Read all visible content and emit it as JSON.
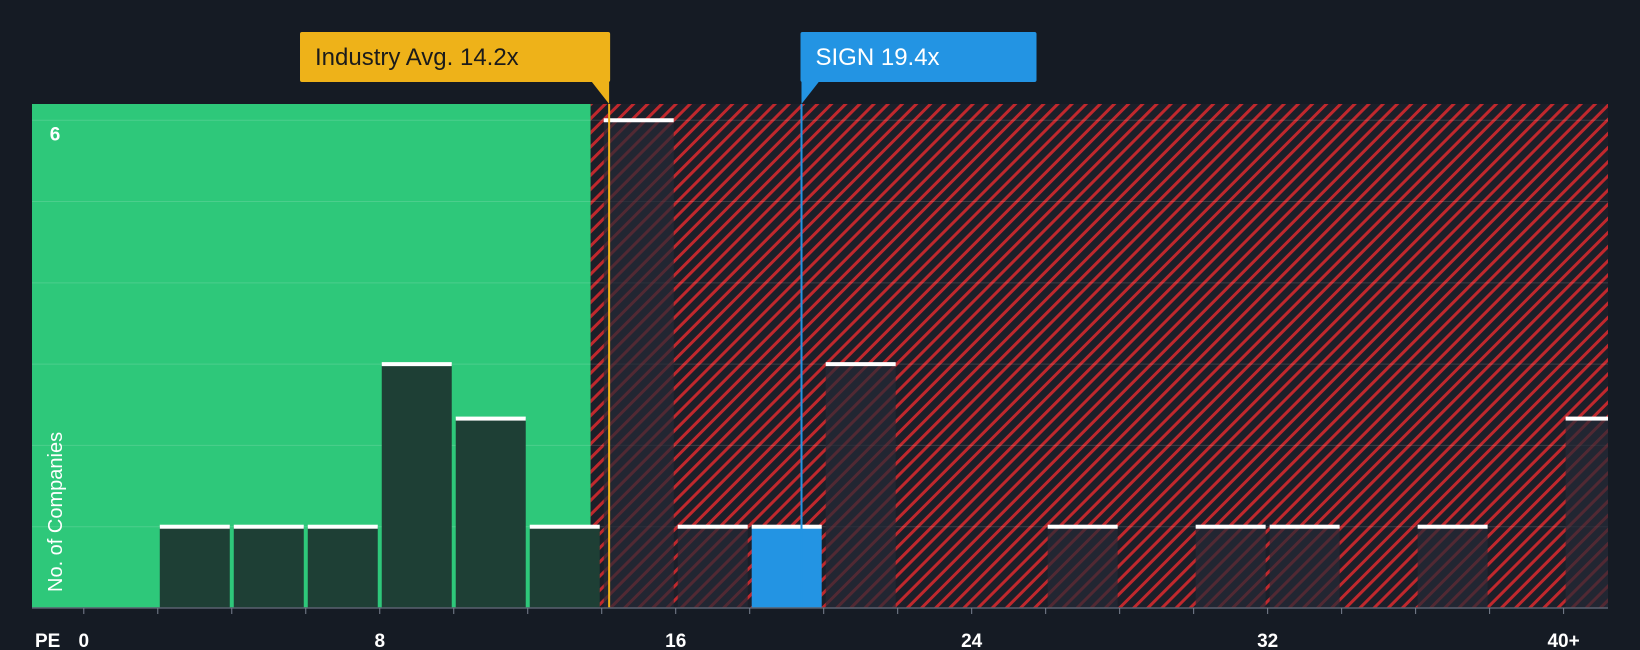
{
  "colors": {
    "background": "#151b24",
    "fair_zone": "#2ec87a",
    "over_zone": "#c0282d",
    "bar_dark": "#1e3f35",
    "bar_over": "#262a36",
    "highlight_bar": "#2394e3",
    "industry": "#eeb219",
    "sign": "#2394e3",
    "bar_cap": "#ffffff"
  },
  "chart_data": {
    "type": "bar",
    "title": "",
    "xlabel": "PE",
    "ylabel": "No. of Companies",
    "xlim": [
      -1.4,
      41.2
    ],
    "ylim": [
      0,
      6.2
    ],
    "x_ticks": [
      {
        "value": 0,
        "label": "0"
      },
      {
        "value": 8,
        "label": "8"
      },
      {
        "value": 16,
        "label": "16"
      },
      {
        "value": 24,
        "label": "24"
      },
      {
        "value": 32,
        "label": "32"
      },
      {
        "value": 40,
        "label": "40+"
      }
    ],
    "y_ticks": [
      {
        "value": 6,
        "label": "6"
      }
    ],
    "gridlines_y": [
      1,
      2,
      3,
      4,
      5,
      6
    ],
    "bin_width": 2,
    "bars": [
      {
        "x0": 2,
        "x1": 4,
        "value": 1
      },
      {
        "x0": 4,
        "x1": 6,
        "value": 1
      },
      {
        "x0": 6,
        "x1": 8,
        "value": 1
      },
      {
        "x0": 8,
        "x1": 10,
        "value": 3
      },
      {
        "x0": 10,
        "x1": 12,
        "value": 2.33
      },
      {
        "x0": 12,
        "x1": 14,
        "value": 1
      },
      {
        "x0": 14,
        "x1": 16,
        "value": 6
      },
      {
        "x0": 16,
        "x1": 18,
        "value": 1
      },
      {
        "x0": 18,
        "x1": 20,
        "value": 1,
        "highlight": true
      },
      {
        "x0": 20,
        "x1": 22,
        "value": 3
      },
      {
        "x0": 26,
        "x1": 28,
        "value": 1
      },
      {
        "x0": 30,
        "x1": 32,
        "value": 1
      },
      {
        "x0": 32,
        "x1": 34,
        "value": 1
      },
      {
        "x0": 36,
        "x1": 38,
        "value": 1
      },
      {
        "x0": 40,
        "x1": 42,
        "value": 2.33
      }
    ],
    "fair_value_boundary": 13.7,
    "industry_avg": {
      "value": 14.2,
      "label": "Industry Avg. 14.2x"
    },
    "company": {
      "value": 19.4,
      "label": "SIGN 19.4x"
    }
  }
}
